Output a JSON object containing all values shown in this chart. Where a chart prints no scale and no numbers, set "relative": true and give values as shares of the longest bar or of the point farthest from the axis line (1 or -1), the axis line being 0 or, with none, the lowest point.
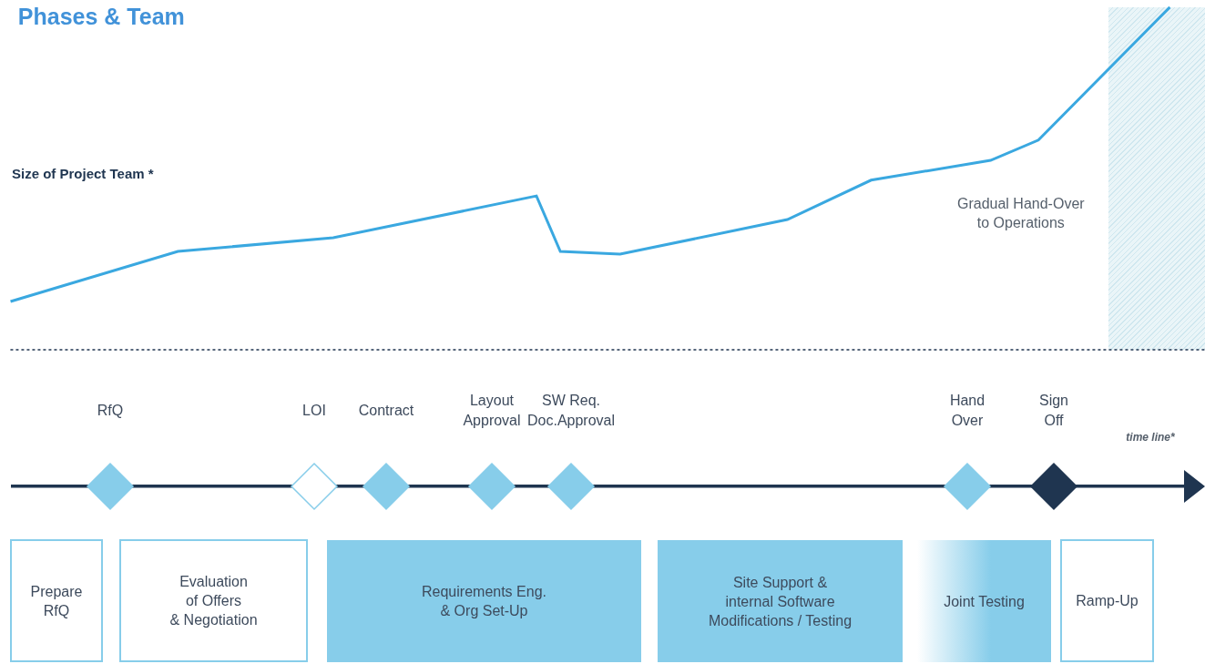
{
  "chart_data": {
    "type": "line",
    "title": "Phases & Team",
    "ylabel": "Size of Project Team *",
    "relative": true,
    "grid": false,
    "legend": false,
    "marker": "none",
    "categories": [
      null,
      null,
      null,
      null,
      null,
      null,
      null,
      null,
      null,
      null,
      null,
      null,
      null,
      null,
      null,
      null,
      null,
      null,
      null,
      null,
      null,
      null,
      null,
      null,
      null,
      null,
      null,
      null,
      null,
      null,
      null,
      null,
      null,
      null,
      null,
      null,
      null,
      null,
      null,
      null,
      null,
      null,
      null,
      null,
      null,
      null,
      null,
      null,
      null,
      null,
      null,
      null,
      null,
      null,
      null,
      null,
      null,
      null,
      null,
      null,
      null,
      null,
      null,
      null,
      null,
      null,
      null,
      null,
      null,
      null,
      null,
      null,
      null,
      null,
      null,
      null,
      null,
      null,
      null,
      null,
      null,
      null,
      null,
      null,
      null,
      null,
      null,
      null,
      null,
      null,
      null,
      null,
      null,
      null,
      null,
      null,
      null,
      null
    ],
    "values": [
      0.141,
      null,
      null,
      null,
      null,
      null,
      null,
      null,
      null,
      null,
      null,
      null,
      null,
      null,
      0.287,
      null,
      null,
      null,
      null,
      null,
      null,
      null,
      null,
      null,
      null,
      null,
      null,
      0.327,
      null,
      null,
      null,
      null,
      null,
      null,
      null,
      null,
      null,
      null,
      null,
      null,
      null,
      null,
      null,
      null,
      0.449,
      null,
      0.287,
      null,
      null,
      null,
      null,
      0.279,
      null,
      null,
      null,
      null,
      null,
      null,
      null,
      null,
      null,
      null,
      null,
      null,
      null,
      0.38,
      null,
      null,
      null,
      null,
      null,
      null,
      0.495,
      null,
      null,
      null,
      null,
      null,
      null,
      null,
      null,
      null,
      0.553,
      null,
      null,
      null,
      0.612,
      null,
      null,
      null,
      null,
      null,
      null,
      null,
      null,
      null,
      null,
      1
    ],
    "color": "#3aa8e0",
    "annotations": [
      "RfQ",
      "LOI",
      "Contract",
      "Layout\nApproval",
      "SW Req.\nDoc.Approval",
      "Hand\nOver",
      "Sign\nOff",
      "time line*",
      "Prepare\nRfQ",
      "Evaluation\nof Offers\n& Negotiation",
      "Requirements Eng.\n& Org Set-Up",
      "Site Support &\ninternal Software\nModifications / Testing",
      "Joint Testing",
      "Ramp-Up",
      "Gradual Hand-Over\nto Operations"
    ]
  }
}
